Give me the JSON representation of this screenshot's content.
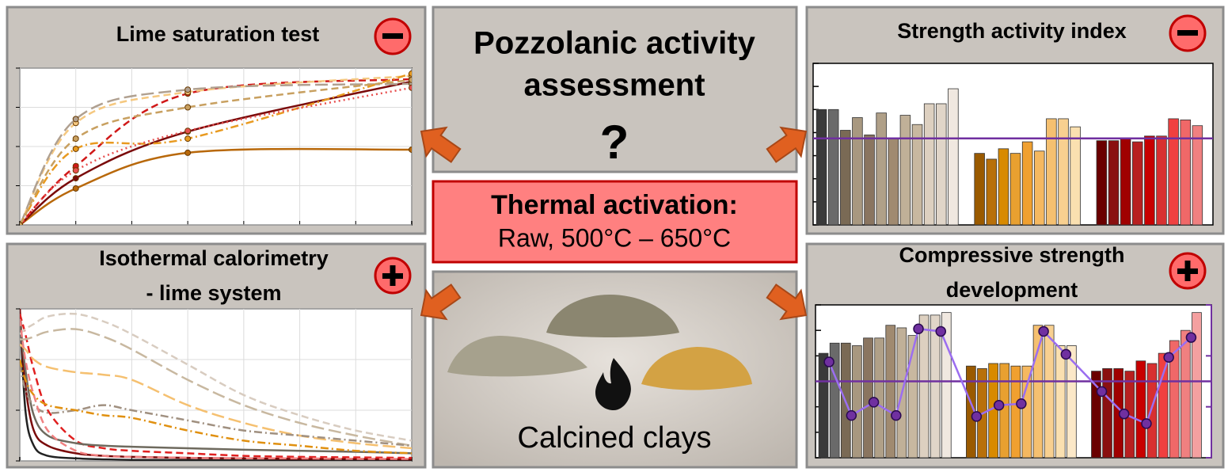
{
  "center": {
    "title_lines": [
      "Pozzolanic activity",
      "assessment"
    ],
    "question": "?",
    "activation": {
      "title": "Thermal activation:",
      "text": "Raw, 500°C – 650°C"
    },
    "caption": "Calcined clays"
  },
  "panels": [
    {
      "title_lines": [
        "Lime saturation test"
      ]
    },
    {
      "title_lines": [
        "Isothermal calorimetry",
        "- lime system"
      ]
    },
    {
      "title_lines": [
        "Strength activity index"
      ]
    },
    {
      "title_lines": [
        "Compressive strength",
        "development"
      ]
    }
  ],
  "chart_data": [
    {
      "type": "line",
      "x": [
        0,
        1,
        3,
        7
      ],
      "xlim": [
        0,
        7
      ],
      "xticks": [
        0,
        1,
        2,
        3,
        4,
        5,
        6,
        7
      ],
      "ylim": [
        0,
        4
      ],
      "yticks": [
        0,
        1,
        2,
        3,
        4
      ],
      "grid": true,
      "markers": true,
      "series": [
        {
          "color": "#b8680a",
          "dash": "solid",
          "values": [
            0,
            0.93,
            1.84,
            1.92
          ]
        },
        {
          "color": "#7a0a0a",
          "dash": "solid",
          "values": [
            0,
            1.19,
            2.38,
            3.66
          ]
        },
        {
          "color": "#d01818",
          "dash": "dashed",
          "values": [
            0,
            1.5,
            3.35,
            3.72
          ]
        },
        {
          "color": "#f5c880",
          "dash": "dashed",
          "values": [
            0,
            2.6,
            3.39,
            3.8
          ]
        },
        {
          "color": "#b0a090",
          "dash": "longdash",
          "values": [
            0,
            2.7,
            3.45,
            3.6
          ]
        },
        {
          "color": "#e89a20",
          "dash": "dashdot",
          "values": [
            0,
            1.94,
            2.2,
            3.86
          ]
        },
        {
          "color": "#e85050",
          "dash": "dotted",
          "values": [
            0,
            1.39,
            2.4,
            3.5
          ]
        },
        {
          "color": "#c8a060",
          "dash": "dashed",
          "values": [
            0,
            2.2,
            3.0,
            3.7
          ]
        }
      ]
    },
    {
      "type": "line",
      "x": [
        0,
        0.1,
        0.25,
        0.5,
        1,
        1.5,
        2,
        3,
        4,
        5,
        6,
        7
      ],
      "xlim": [
        0,
        7
      ],
      "xticks": [
        0,
        1,
        2,
        3,
        4,
        5,
        6,
        7
      ],
      "ylim": [
        0,
        3
      ],
      "yticks": [
        0,
        1,
        2,
        3
      ],
      "grid": true,
      "markers": false,
      "series": [
        {
          "color": "#222222",
          "dash": "solid",
          "values": [
            3,
            1.0,
            0.3,
            0.1,
            0.05,
            0.03,
            0.02,
            0.02,
            0.01,
            0.01,
            0.01,
            0.01
          ]
        },
        {
          "color": "#7a0a0a",
          "dash": "solid",
          "values": [
            3,
            1.5,
            0.6,
            0.3,
            0.15,
            0.1,
            0.08,
            0.06,
            0.05,
            0.04,
            0.04,
            0.03
          ]
        },
        {
          "color": "#e02020",
          "dash": "dashed",
          "values": [
            2.9,
            2.5,
            1.8,
            1.0,
            0.4,
            0.25,
            0.2,
            0.15,
            0.1,
            0.08,
            0.07,
            0.06
          ]
        },
        {
          "color": "#6e6a5e",
          "dash": "solid",
          "values": [
            2.8,
            1.8,
            0.9,
            0.5,
            0.35,
            0.3,
            0.28,
            0.25,
            0.22,
            0.2,
            0.18,
            0.15
          ]
        },
        {
          "color": "#d8ccc0",
          "dash": "dashed",
          "values": [
            2.5,
            2.6,
            2.7,
            2.85,
            2.9,
            2.75,
            2.5,
            1.9,
            1.3,
            0.9,
            0.6,
            0.4
          ]
        },
        {
          "color": "#c8b8a0",
          "dash": "longdash",
          "values": [
            2.4,
            2.4,
            2.45,
            2.55,
            2.6,
            2.45,
            2.2,
            1.6,
            1.1,
            0.75,
            0.5,
            0.3
          ]
        },
        {
          "color": "#f5c070",
          "dash": "longdash",
          "values": [
            2.3,
            2.2,
            2.0,
            1.85,
            1.75,
            1.7,
            1.6,
            1.1,
            0.75,
            0.5,
            0.35,
            0.25
          ]
        },
        {
          "color": "#a09080",
          "dash": "dashdot",
          "values": [
            1.9,
            1.4,
            1.1,
            0.95,
            1.0,
            1.1,
            1.0,
            0.8,
            0.6,
            0.5,
            0.4,
            0.3
          ]
        },
        {
          "color": "#e09010",
          "dash": "dashdot",
          "values": [
            2.0,
            1.6,
            1.3,
            1.1,
            1.0,
            0.9,
            0.85,
            0.6,
            0.4,
            0.3,
            0.2,
            0.15
          ]
        },
        {
          "color": "#f08080",
          "dash": "dashed",
          "values": [
            2.8,
            2.0,
            1.3,
            0.6,
            0.2,
            0.1,
            0.08,
            0.06,
            0.05,
            0.05,
            0.04,
            0.04
          ]
        }
      ]
    },
    {
      "type": "bar",
      "ylim": [
        0,
        140
      ],
      "yticks": [
        0,
        20,
        40,
        60,
        80,
        100,
        120,
        140
      ],
      "reference_line": 75,
      "reference_color": "#7030a0",
      "values": [
        100,
        100,
        82,
        93,
        78,
        97,
        75,
        95,
        87,
        105,
        105,
        118,
        62,
        57,
        66,
        62,
        72,
        64,
        92,
        92,
        85,
        73,
        73,
        75,
        72,
        77,
        77,
        92,
        91,
        86
      ],
      "colors": [
        "#3a3a3a",
        "#6a6a6a",
        "#7a6a55",
        "#a89880",
        "#8a7560",
        "#b0a088",
        "#a08a70",
        "#c0b098",
        "#c8b8a0",
        "#ddd0c0",
        "#e0d5c8",
        "#f0e8e0",
        "#9a5a00",
        "#b8700a",
        "#d88a00",
        "#e8a030",
        "#f0a030",
        "#f5b860",
        "#f5c070",
        "#f8d090",
        "#fae0b0",
        "#6a0000",
        "#8a1010",
        "#a00000",
        "#b82020",
        "#c80000",
        "#d83030",
        "#f04040",
        "#f06868",
        "#f08080"
      ]
    },
    {
      "type": "bar",
      "ylim": [
        0,
        60
      ],
      "yticks": [
        0,
        10,
        20,
        30,
        40,
        50,
        60
      ],
      "y2lim": [
        0,
        3
      ],
      "y2ticks": [
        0,
        1,
        2,
        3
      ],
      "reference_line": 30,
      "reference_color": "#7030a0",
      "values": [
        41,
        45,
        45,
        44,
        47,
        47,
        52,
        51,
        48,
        56,
        56,
        57,
        36,
        35,
        37,
        37,
        36,
        36,
        52,
        52,
        44,
        44,
        34,
        35,
        35,
        34,
        38,
        37,
        41,
        46,
        50,
        57
      ],
      "colors": [
        "#3a3a3a",
        "#6a6a6a",
        "#7a6a55",
        "#a89880",
        "#8a7560",
        "#b0a088",
        "#a08a70",
        "#c0b098",
        "#c8b8a0",
        "#ddd0c0",
        "#e0d5c8",
        "#f0e8e0",
        "#9a5a00",
        "#b8700a",
        "#d88a00",
        "#e8a030",
        "#f0a030",
        "#f5b860",
        "#f5c070",
        "#f8d090",
        "#fae0b0",
        "#fbe8c8",
        "#6a0000",
        "#8a1010",
        "#a00000",
        "#b82020",
        "#c80000",
        "#d83030",
        "#f04040",
        "#f06868",
        "#f08080",
        "#f4a0a0"
      ],
      "line_series": {
        "axis": "y2",
        "color": "#9b6ef0",
        "marker_color": "#7030a0",
        "values": [
          1.88,
          0.83,
          1.09,
          0.83,
          2.53,
          2.48,
          0.81,
          1.03,
          1.06,
          2.48,
          2.03,
          1.3,
          0.86,
          0.67,
          1.97,
          2.36
        ]
      }
    }
  ]
}
